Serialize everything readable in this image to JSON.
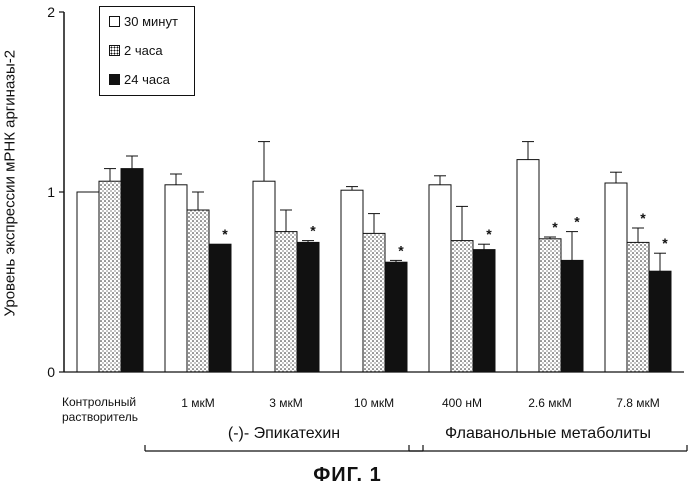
{
  "chart_data": {
    "type": "bar",
    "ylabel": "Уровень экспрессии мРНК аргиназы-2",
    "ylim": [
      0,
      2
    ],
    "yticks": [
      "0",
      "1",
      "2"
    ],
    "categories": [
      [
        "Контрольный",
        "растворитель"
      ],
      [
        "1 мкМ"
      ],
      [
        "3 мкМ"
      ],
      [
        "10 мкМ"
      ],
      [
        "400 нМ"
      ],
      [
        "2.6 мкМ"
      ],
      [
        "7.8 мкМ"
      ]
    ],
    "series": [
      {
        "name": "30 минут",
        "style": "open",
        "values": [
          1.0,
          1.04,
          1.06,
          1.01,
          1.04,
          1.18,
          1.05
        ],
        "errors": [
          0.0,
          0.06,
          0.22,
          0.02,
          0.05,
          0.1,
          0.06
        ],
        "significant": [
          false,
          false,
          false,
          false,
          false,
          false,
          false
        ]
      },
      {
        "name": "2 часа",
        "style": "dotted",
        "values": [
          1.06,
          0.9,
          0.78,
          0.77,
          0.73,
          0.74,
          0.72
        ],
        "errors": [
          0.07,
          0.1,
          0.12,
          0.11,
          0.19,
          0.01,
          0.08
        ],
        "significant": [
          false,
          false,
          false,
          false,
          false,
          true,
          true
        ]
      },
      {
        "name": "24 часа",
        "style": "solid",
        "values": [
          1.13,
          0.71,
          0.72,
          0.61,
          0.68,
          0.62,
          0.56
        ],
        "errors": [
          0.07,
          0.0,
          0.01,
          0.01,
          0.03,
          0.16,
          0.1
        ],
        "significant": [
          false,
          true,
          true,
          true,
          true,
          true,
          true
        ]
      }
    ],
    "significance_marker": "*",
    "groups": [
      {
        "label": "(-)- Эпикатехин",
        "from": 1,
        "to": 3
      },
      {
        "label": "Флаванольные метаболиты",
        "from": 4,
        "to": 6
      }
    ],
    "legend": "top-left",
    "grid": false,
    "figure_label": "ФИГ. 1"
  }
}
